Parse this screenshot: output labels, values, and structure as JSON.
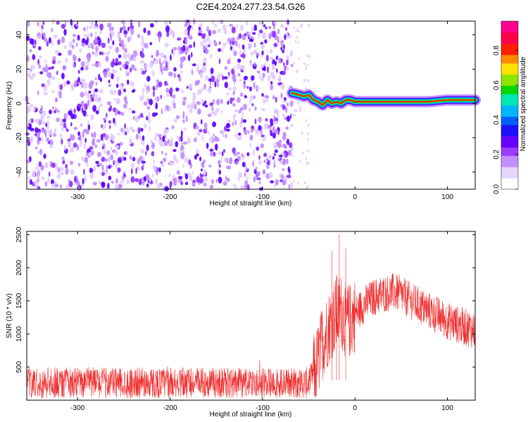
{
  "title": "C2E4.2024.277.23.54.G26",
  "colors": {
    "cmap": [
      "#ffffff",
      "#e2ccff",
      "#c08cff",
      "#8a2dff",
      "#5a00ff",
      "#0028ff",
      "#0098ff",
      "#00e0c8",
      "#00d000",
      "#7ee000",
      "#ffd000",
      "#ff7000",
      "#ff0000",
      "#ff0068"
    ],
    "snr_line": "#ef2f2f",
    "frame": "#000000"
  },
  "chart_data": [
    {
      "type": "heatmap",
      "name_hint": "spectrogram",
      "xlabel": "Height of straight line (km)",
      "ylabel": "Frequency (Hz)",
      "xlim": [
        -355,
        130
      ],
      "ylim": [
        -50,
        48
      ],
      "xticks": [
        -300,
        -200,
        -100,
        0,
        100
      ],
      "yticks": [
        -40,
        -20,
        0,
        20,
        40
      ],
      "noise_region_x": [
        -355,
        -68
      ],
      "signal_trace": {
        "x": [
          -68,
          -60,
          -55,
          -50,
          -45,
          -40,
          -35,
          -30,
          -25,
          -20,
          -15,
          -10,
          -5,
          0,
          20,
          40,
          60,
          80,
          100,
          110,
          120,
          130
        ],
        "y": [
          6,
          5,
          4,
          5,
          2,
          1,
          -1,
          2,
          0,
          1,
          0,
          2,
          2,
          1,
          1,
          1,
          1,
          1,
          2,
          2,
          2,
          2
        ]
      },
      "colorbar": {
        "label": "Normalized spectral amplitude",
        "range": [
          0.0,
          0.97
        ],
        "ticks": [
          "0.0",
          "0.2",
          "0.4",
          "0.6",
          "0.8"
        ]
      },
      "grid": false
    },
    {
      "type": "line",
      "name_hint": "snr",
      "xlabel": "Height of straight line (km)",
      "ylabel": "SNR (10 * v/v)",
      "xlim": [
        -355,
        130
      ],
      "ylim": [
        0,
        2550
      ],
      "xticks": [
        -300,
        -200,
        -100,
        0,
        100
      ],
      "yticks": [
        500,
        1000,
        1500,
        2000,
        2500
      ],
      "envelope": {
        "x": [
          -355,
          -300,
          -200,
          -100,
          -50,
          -45,
          -40,
          -35,
          -30,
          -25,
          -20,
          -15,
          -10,
          -5,
          0,
          10,
          20,
          30,
          40,
          50,
          60,
          80,
          100,
          120,
          130
        ],
        "y": [
          260,
          270,
          260,
          255,
          260,
          400,
          600,
          900,
          1050,
          1200,
          1300,
          1350,
          1200,
          1200,
          1300,
          1450,
          1550,
          1600,
          1640,
          1600,
          1500,
          1350,
          1200,
          1100,
          1060
        ]
      },
      "spikes": [
        {
          "x": -17,
          "y": 2510
        },
        {
          "x": -25,
          "y": 2250
        },
        {
          "x": -10,
          "y": 2300
        },
        {
          "x": -20,
          "y": 1900
        }
      ],
      "grid": false
    }
  ]
}
